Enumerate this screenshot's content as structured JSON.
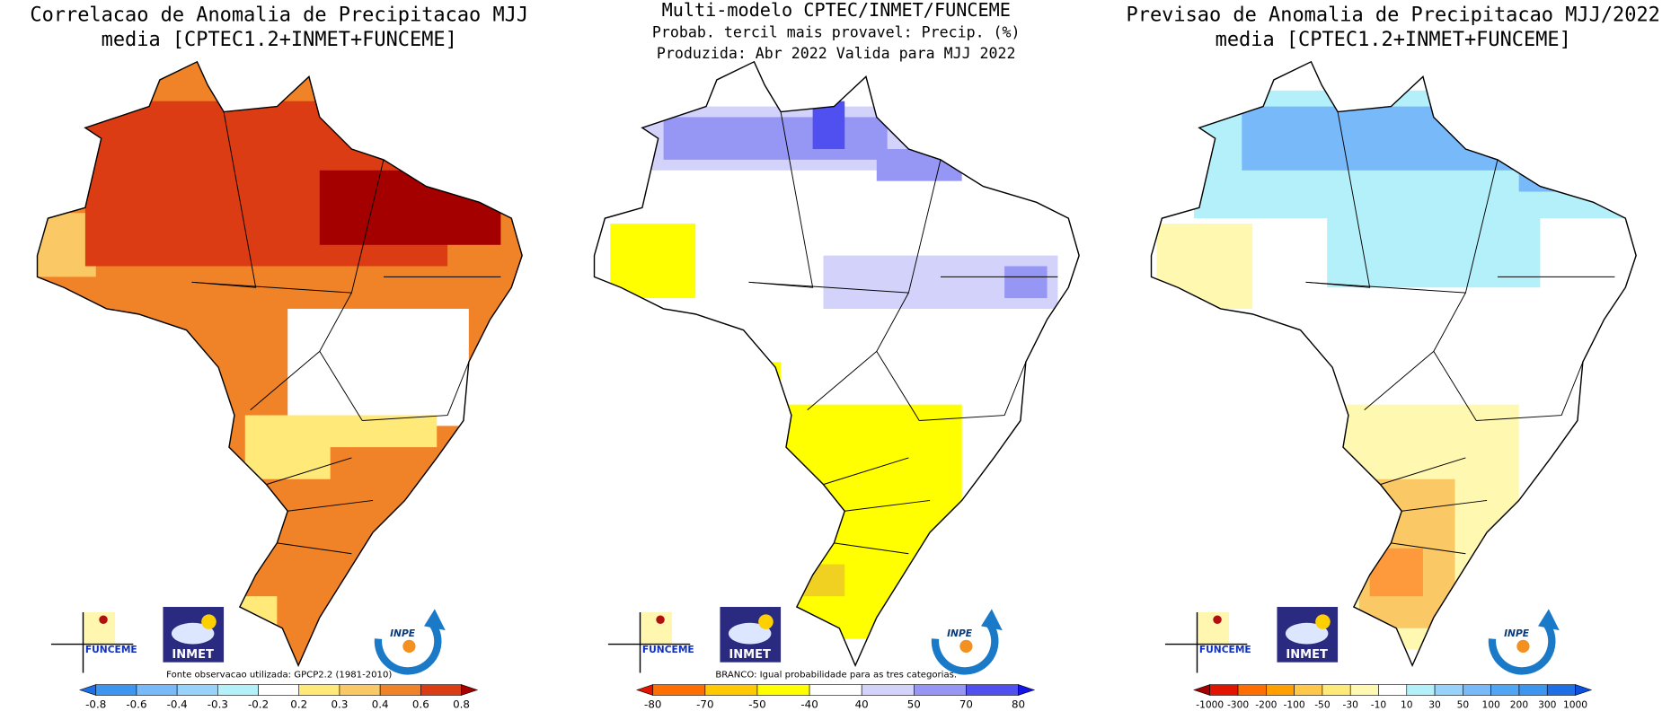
{
  "logos": {
    "funceme": "FUNCEME",
    "inmet": "INMET",
    "inpe": "INPE"
  },
  "panels": [
    {
      "title_lines": [
        "Correlacao de Anomalia de Precipitacao MJJ",
        "media [CPTEC1.2+INMET+FUNCEME]"
      ],
      "note": "Fonte observacao utilizada: GPCP2.2 (1981-2010)",
      "colorbar": {
        "colors": [
          "#1e6ee6",
          "#3c96f0",
          "#78b9fa",
          "#96d2fa",
          "#b4f0fa",
          "#ffffff",
          "#ffe978",
          "#fac864",
          "#f08228",
          "#dc3c14",
          "#a50000"
        ],
        "labels": [
          "-0.8",
          "-0.6",
          "-0.4",
          "-0.3",
          "-0.2",
          "0.2",
          "0.3",
          "0.4",
          "0.6",
          "0.8"
        ]
      }
    },
    {
      "title_lines": [
        "Multi-modelo CPTEC/INMET/FUNCEME",
        "Probab. tercil mais provavel: Precip. (%)",
        "Produzida: Abr 2022  Valida para MJJ 2022"
      ],
      "note": "BRANCO: Igual probabilidade para as tres categorias.",
      "colorbar": {
        "colors": [
          "#e11400",
          "#ff6e00",
          "#ffc800",
          "#ffff00",
          "#ffffff",
          "#d2d2fa",
          "#9696f5",
          "#5050f0",
          "#1414e6"
        ],
        "labels": [
          "-80",
          "-70",
          "-50",
          "-40",
          "40",
          "50",
          "70",
          "80"
        ]
      }
    },
    {
      "title_lines": [
        "Previsao de Anomalia de Precipitacao MJJ/2022",
        "media [CPTEC1.2+INMET+FUNCEME]"
      ],
      "colorbar": {
        "colors": [
          "#a50000",
          "#e11400",
          "#ff6e00",
          "#ffa000",
          "#ffc84b",
          "#ffe978",
          "#fff8b0",
          "#ffffff",
          "#b4f0fa",
          "#96d2fa",
          "#78b9fa",
          "#50a5f5",
          "#3c96f0",
          "#1e6ee6",
          "#0a50dc"
        ],
        "labels": [
          "-1000",
          "-300",
          "-200",
          "-100",
          "-50",
          "-30",
          "-10",
          "10",
          "30",
          "50",
          "100",
          "200",
          "300",
          "1000"
        ]
      }
    }
  ]
}
